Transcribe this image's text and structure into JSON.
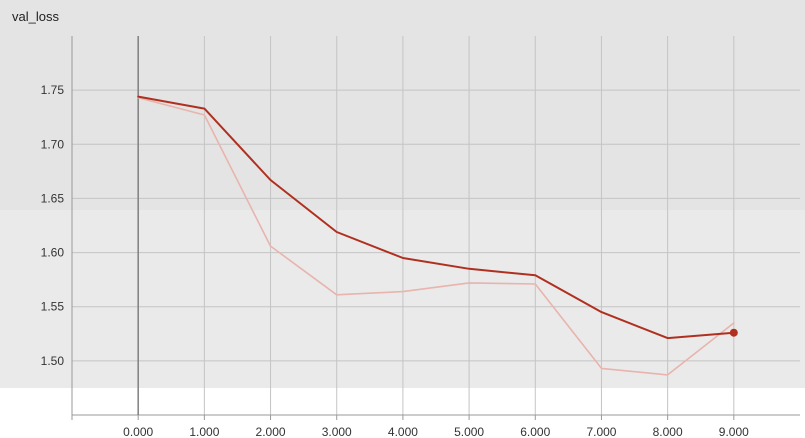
{
  "panel": {
    "title": "val_loss"
  },
  "chart_data": {
    "type": "line",
    "title": "val_loss",
    "xlabel": "",
    "ylabel": "",
    "xlim": [
      -1.0,
      10.0
    ],
    "ylim": [
      1.45,
      1.8
    ],
    "x_ticks": [
      "0.000",
      "1.000",
      "2.000",
      "3.000",
      "4.000",
      "5.000",
      "6.000",
      "7.000",
      "8.000",
      "9.000"
    ],
    "y_ticks": [
      "1.50",
      "1.55",
      "1.60",
      "1.65",
      "1.70",
      "1.75"
    ],
    "grid": true,
    "series": [
      {
        "role": "raw",
        "color": "#e8b4ad",
        "x": [
          0,
          1,
          2,
          3,
          4,
          5,
          6,
          7,
          8,
          9
        ],
        "y": [
          1.743,
          1.727,
          1.606,
          1.561,
          1.564,
          1.572,
          1.571,
          1.493,
          1.487,
          1.535
        ]
      },
      {
        "role": "smoothed",
        "color": "#b03020",
        "x": [
          0,
          1,
          2,
          3,
          4,
          5,
          6,
          7,
          8,
          9
        ],
        "y": [
          1.744,
          1.733,
          1.667,
          1.619,
          1.595,
          1.585,
          1.579,
          1.545,
          1.521,
          1.526
        ]
      }
    ]
  }
}
